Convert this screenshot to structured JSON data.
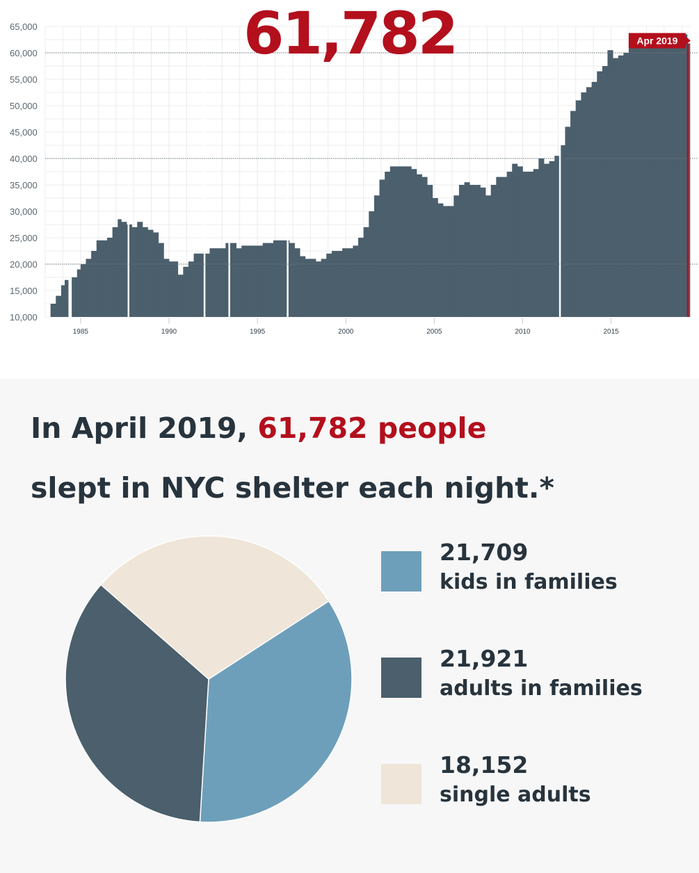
{
  "header": {
    "big_number": "61,782"
  },
  "headline": {
    "part1": "In April 2019, ",
    "highlight": "61,782 people",
    "part2": "slept in NYC shelter each night.*"
  },
  "colors": {
    "accent": "#b30f1d",
    "area": "#4b5f6c",
    "kids": "#6e9fba",
    "adults_families": "#4b5f6c",
    "single": "#efe5d8",
    "text": "#28343d"
  },
  "chart_data": [
    {
      "type": "area",
      "title": "61,782",
      "xlabel": "",
      "ylabel": "",
      "ylim": [
        10000,
        65000
      ],
      "xlim": [
        1983,
        2019.5
      ],
      "y_ticks": [
        "10,000",
        "15,000",
        "20,000",
        "25,000",
        "30,000",
        "35,000",
        "40,000",
        "45,000",
        "50,000",
        "55,000",
        "60,000",
        "65,000"
      ],
      "y_tick_values": [
        10000,
        15000,
        20000,
        25000,
        30000,
        35000,
        40000,
        45000,
        50000,
        55000,
        60000,
        65000
      ],
      "x_ticks": [
        "1985",
        "1990",
        "1995",
        "2000",
        "2005",
        "2010",
        "2015"
      ],
      "x_tick_values": [
        1985,
        1990,
        1995,
        2000,
        2005,
        2010,
        2015
      ],
      "grid": true,
      "reference_lines": [
        20000,
        40000,
        60000
      ],
      "gaps": [
        1987.7,
        1992,
        1993.4,
        1996.7,
        2012.1
      ],
      "annotation": {
        "label": "Apr 2019",
        "x": 2019.3,
        "y": 61782
      },
      "series": [
        {
          "x": [
            1983.3,
            1983.6,
            1983.9,
            1984.1,
            1984.3,
            1984.5,
            1984.8,
            1985.0,
            1985.3,
            1985.6,
            1985.9,
            1986.2,
            1986.5,
            1986.8,
            1987.1,
            1987.3,
            1987.6,
            1987.9,
            1988.2,
            1988.5,
            1988.8,
            1989.1,
            1989.4,
            1989.7,
            1990.0,
            1990.3,
            1990.5,
            1990.8,
            1991.1,
            1991.4,
            1991.7,
            1992.0,
            1992.3,
            1992.6,
            1992.9,
            1993.2,
            1993.5,
            1993.8,
            1994.1,
            1994.4,
            1994.7,
            1995.0,
            1995.3,
            1995.6,
            1995.9,
            1996.2,
            1996.5,
            1996.8,
            1997.1,
            1997.4,
            1997.7,
            1998.0,
            1998.3,
            1998.6,
            1998.9,
            1999.2,
            1999.5,
            1999.8,
            2000.1,
            2000.4,
            2000.7,
            2001.0,
            2001.3,
            2001.6,
            2001.9,
            2002.2,
            2002.5,
            2002.8,
            2003.1,
            2003.4,
            2003.7,
            2004.0,
            2004.3,
            2004.6,
            2004.9,
            2005.2,
            2005.5,
            2005.8,
            2006.1,
            2006.4,
            2006.7,
            2007.0,
            2007.3,
            2007.6,
            2007.9,
            2008.2,
            2008.5,
            2008.8,
            2009.1,
            2009.4,
            2009.7,
            2010.0,
            2010.3,
            2010.6,
            2010.9,
            2011.2,
            2011.5,
            2011.8,
            2012.1,
            2012.4,
            2012.7,
            2013.0,
            2013.3,
            2013.6,
            2013.9,
            2014.2,
            2014.5,
            2014.8,
            2015.1,
            2015.4,
            2015.7,
            2016.0,
            2016.3,
            2016.6,
            2016.9,
            2017.2,
            2017.5,
            2017.8,
            2018.1,
            2018.4,
            2018.7,
            2019.0,
            2019.3
          ],
          "y": [
            12500,
            14000,
            16000,
            17000,
            10000,
            17500,
            19000,
            20000,
            21000,
            22500,
            24500,
            24500,
            25000,
            27000,
            28500,
            28000,
            27500,
            27000,
            28000,
            27000,
            26500,
            26000,
            24000,
            21000,
            20500,
            20500,
            18000,
            19500,
            20500,
            22000,
            22000,
            22000,
            23000,
            23000,
            23000,
            24000,
            24000,
            23000,
            23500,
            23500,
            23500,
            23500,
            24000,
            24000,
            24500,
            24500,
            24500,
            24000,
            23000,
            21500,
            21000,
            21000,
            20500,
            21000,
            22000,
            22500,
            22500,
            23000,
            23000,
            23500,
            25000,
            27000,
            30000,
            33000,
            36000,
            37500,
            38500,
            38500,
            38500,
            38500,
            38000,
            37000,
            36500,
            35000,
            32500,
            31500,
            31000,
            31000,
            33000,
            35000,
            35500,
            35000,
            35000,
            34500,
            33000,
            35000,
            36500,
            36500,
            37500,
            39000,
            38500,
            37500,
            37500,
            38000,
            40000,
            39000,
            39500,
            40500,
            42500,
            46000,
            49000,
            51000,
            52500,
            53500,
            54500,
            56500,
            57500,
            60500,
            59000,
            59500,
            60000,
            61000,
            61000,
            61000,
            62000,
            62500,
            63000,
            63000,
            63500,
            63500,
            63500,
            63500,
            61782
          ]
        }
      ]
    },
    {
      "type": "pie",
      "categories": [
        "kids in families",
        "adults in families",
        "single adults"
      ],
      "values": [
        21709,
        21921,
        18152
      ],
      "value_labels": [
        "21,709",
        "21,921",
        "18,152"
      ],
      "colors": [
        "#6e9fba",
        "#4b5f6c",
        "#efe5d8"
      ],
      "start_angle_deg": 57
    }
  ]
}
